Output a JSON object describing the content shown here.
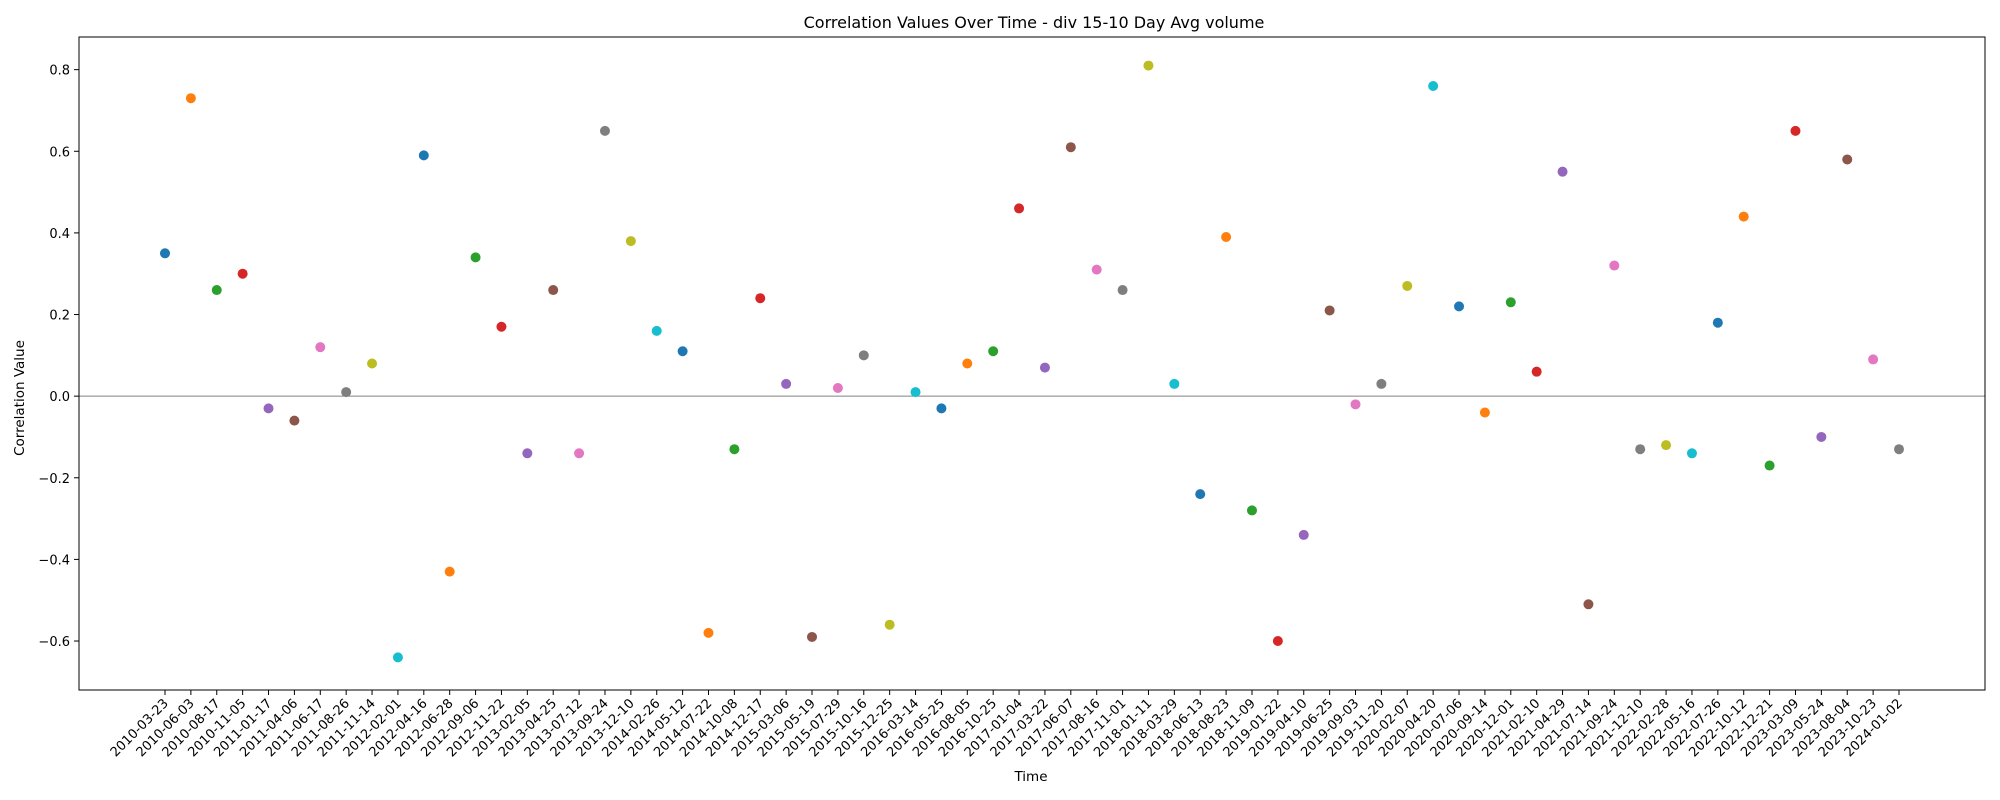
{
  "chart_data": {
    "type": "scatter",
    "title": "Correlation Values Over Time - div 15-10 Day Avg volume",
    "xlabel": "Time",
    "ylabel": "Correlation Value",
    "ylim": [
      -0.72,
      0.88
    ],
    "yticks": [
      -0.6,
      -0.4,
      -0.2,
      0.0,
      0.2,
      0.4,
      0.6,
      0.8
    ],
    "ytick_labels": [
      "−0.6",
      "−0.4",
      "−0.2",
      "0.0",
      "0.2",
      "0.4",
      "0.6",
      "0.8"
    ],
    "reference_line": 0.0,
    "grid": false,
    "legend": "none",
    "palette": [
      "#1f77b4",
      "#ff7f0e",
      "#2ca02c",
      "#d62728",
      "#9467bd",
      "#8c564b",
      "#e377c2",
      "#7f7f7f",
      "#bcbd22",
      "#17becf"
    ],
    "x": [
      "2010-03-23",
      "2010-06-03",
      "2010-08-17",
      "2010-11-05",
      "2011-01-17",
      "2011-04-06",
      "2011-06-17",
      "2011-08-26",
      "2011-11-14",
      "2012-02-01",
      "2012-04-16",
      "2012-06-28",
      "2012-09-06",
      "2012-11-22",
      "2013-02-05",
      "2013-04-25",
      "2013-07-12",
      "2013-09-24",
      "2013-12-10",
      "2014-02-26",
      "2014-05-12",
      "2014-07-22",
      "2014-10-08",
      "2014-12-17",
      "2015-03-06",
      "2015-05-19",
      "2015-07-29",
      "2015-10-16",
      "2015-12-25",
      "2016-03-14",
      "2016-05-25",
      "2016-08-05",
      "2016-10-25",
      "2017-01-04",
      "2017-03-22",
      "2017-06-07",
      "2017-08-16",
      "2017-11-01",
      "2018-01-11",
      "2018-03-29",
      "2018-06-13",
      "2018-08-23",
      "2018-11-09",
      "2019-01-22",
      "2019-04-10",
      "2019-06-25",
      "2019-09-03",
      "2019-11-20",
      "2020-02-07",
      "2020-04-20",
      "2020-07-06",
      "2020-09-14",
      "2020-12-01",
      "2021-02-10",
      "2021-04-29",
      "2021-07-14",
      "2021-09-24",
      "2021-12-10",
      "2022-02-28",
      "2022-05-16",
      "2022-07-26",
      "2022-10-12",
      "2022-12-21",
      "2023-03-09",
      "2023-05-24",
      "2023-08-04",
      "2023-10-23",
      "2024-01-02"
    ],
    "y": [
      0.35,
      0.73,
      0.26,
      0.3,
      -0.03,
      -0.06,
      0.12,
      0.01,
      0.08,
      -0.64,
      0.59,
      -0.43,
      0.34,
      0.17,
      -0.14,
      0.26,
      -0.14,
      0.65,
      0.38,
      0.16,
      0.11,
      -0.58,
      -0.13,
      0.24,
      0.03,
      -0.59,
      0.02,
      0.1,
      -0.56,
      0.01,
      -0.03,
      0.08,
      0.11,
      0.46,
      0.07,
      0.61,
      0.31,
      0.26,
      0.81,
      0.03,
      -0.24,
      0.39,
      -0.28,
      -0.6,
      -0.34,
      0.21,
      -0.02,
      0.03,
      0.27,
      0.76,
      0.22,
      -0.04,
      0.23,
      0.06,
      0.55,
      -0.51,
      0.32,
      -0.13,
      -0.12,
      -0.14,
      0.18,
      0.44,
      -0.17,
      0.65,
      -0.1,
      0.58,
      0.09,
      -0.13
    ]
  }
}
